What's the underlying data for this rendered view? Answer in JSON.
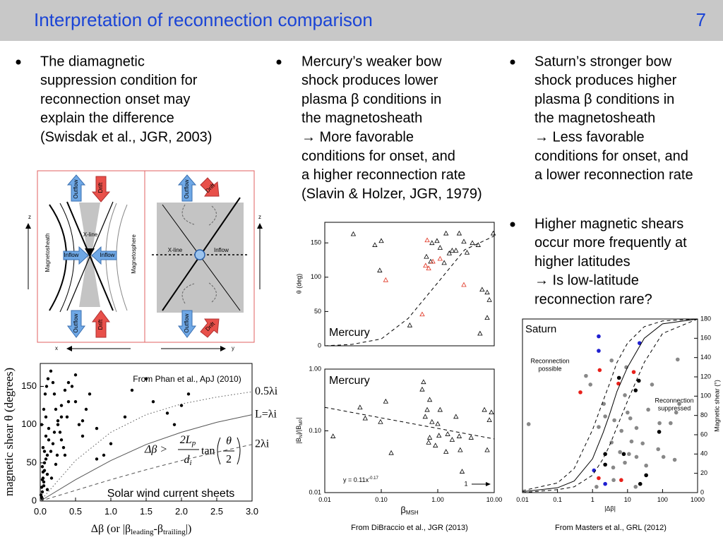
{
  "header": {
    "title": "Interpretation of reconnection comparison",
    "page_number": "7"
  },
  "bullets": [
    {
      "lines": [
        "The diamagnetic",
        "suppression condition for",
        "reconnection onset may",
        "explain the difference",
        "(Swisdak et al., JGR, 2003)"
      ]
    },
    {
      "lines": [
        "Mercury’s weaker bow",
        "shock produces lower",
        "plasma β conditions in",
        "the magnetosheath",
        "→ More favorable",
        "conditions for onset, and",
        "a higher reconnection rate",
        "(Slavin & Holzer, JGR, 1979)"
      ]
    },
    {
      "lines": [
        "Saturn’s stronger bow",
        "shock produces higher",
        "plasma β conditions in",
        "the magnetosheath",
        "→ Less favorable",
        "conditions for onset, and",
        "a lower reconnection rate"
      ]
    },
    {
      "lines": [
        "Higher magnetic shears",
        "occur more frequently at",
        "higher latitudes",
        "→ Is low-latitude",
        "reconnection rare?"
      ]
    }
  ],
  "diagram": {
    "left": {
      "outflow_top": "Outflow",
      "drift_top": "Drift",
      "outflow_bottom": "Outflow",
      "drift_bottom": "Drift",
      "inflow_left": "Inflow",
      "inflow_right": "Inflow",
      "x_line": "X-line",
      "magnetosheath": "Magnetosheath",
      "magnetosphere": "Magnetosphere"
    },
    "right": {
      "outflow_top": "Outflow",
      "drift_top": "Drift",
      "outflow_bottom": "Outflow",
      "drift_bottom": "Drift",
      "inflow": "Inflow",
      "x_line": "X-line"
    },
    "axes": {
      "z_left": "z",
      "z_right": "z",
      "x": "x",
      "y": "y"
    }
  },
  "chart_data": [
    {
      "type": "scatter",
      "y_label": "magnetic shear θ (degrees)",
      "x_label_parts": [
        "Δβ (or |β",
        "leading",
        "-β",
        "trailing",
        "|)"
      ],
      "source": "From Phan et al., ApJ (2010)",
      "annotation": "Solar wind current sheets",
      "formula": {
        "lhs": "Δβ >",
        "num": "2L",
        "num_sub": "p",
        "den": "d",
        "den_sub": "i",
        "func": "tan",
        "inner_num": "θ",
        "inner_den": "2"
      },
      "xlim": [
        0,
        3
      ],
      "ylim": [
        0,
        180
      ],
      "xticks": [
        {
          "value": 0,
          "label": "0.0"
        },
        0.5,
        {
          "value": 1,
          "label": "1.0"
        },
        1.5,
        {
          "value": 2,
          "label": "2.0"
        },
        2.5,
        {
          "value": 3,
          "label": "3.0"
        }
      ],
      "yticks": [
        0,
        50,
        100,
        150
      ],
      "series": [
        {
          "style": "points",
          "marker": "circle",
          "color": "#000000",
          "x": [
            0.02,
            0.03,
            0.05,
            0.04,
            0.06,
            0.08,
            0.1,
            0.12,
            0.02,
            0.05,
            0.07,
            0.09,
            0.11,
            0.15,
            0.18,
            0.2,
            0.22,
            0.25,
            0.28,
            0.3,
            0.33,
            0.35,
            0.38,
            0.4,
            0.45,
            0.5,
            0.55,
            0.6,
            0.65,
            0.7,
            0.8,
            0.9,
            1.0,
            1.2,
            1.3,
            1.5,
            1.6,
            1.8,
            1.9,
            2.0,
            2.1,
            0.03,
            0.06,
            0.1,
            0.15,
            0.2,
            0.25,
            0.3,
            0.35,
            0.4,
            0.04,
            0.08,
            0.12,
            0.18,
            0.24,
            0.3,
            0.05,
            0.1,
            0.16,
            0.22,
            0.01,
            0.02,
            0.03,
            0.04,
            0.06,
            0.08,
            0.5,
            0.6,
            0.8,
            0.03
          ],
          "values": [
            5,
            12,
            20,
            30,
            40,
            55,
            60,
            80,
            100,
            120,
            140,
            150,
            160,
            170,
            155,
            140,
            120,
            100,
            90,
            80,
            70,
            60,
            110,
            130,
            150,
            165,
            100,
            85,
            120,
            140,
            95,
            60,
            75,
            110,
            145,
            160,
            130,
            115,
            100,
            125,
            140,
            45,
            50,
            35,
            65,
            90,
            105,
            125,
            145,
            155,
            70,
            85,
            95,
            75,
            60,
            110,
            25,
            15,
            30,
            48,
            8,
            18,
            28,
            38,
            65,
            110,
            130,
            105,
            55,
            3
          ]
        },
        {
          "name": "0.5λi",
          "style": "dotted",
          "color": "#555555",
          "x": [
            0,
            0.5,
            1,
            1.5,
            2,
            2.5,
            3
          ],
          "values": [
            0,
            53,
            90,
            113,
            127,
            136,
            143
          ]
        },
        {
          "name": "L=λi",
          "style": "solid",
          "color": "#555555",
          "x": [
            0,
            0.5,
            1,
            1.5,
            2,
            2.5,
            3
          ],
          "values": [
            0,
            28,
            53,
            74,
            90,
            103,
            113
          ]
        },
        {
          "name": "2λi",
          "style": "dashed",
          "color": "#555555",
          "x": [
            0,
            0.5,
            1,
            1.5,
            2,
            2.5,
            3
          ],
          "values": [
            0,
            14,
            28,
            41,
            53,
            64,
            74
          ]
        }
      ]
    },
    {
      "type": "scatter",
      "y_label": "θ (deg)",
      "annotation": "Mercury",
      "xlog": true,
      "xlim": [
        0.01,
        10
      ],
      "ylim": [
        0,
        180
      ],
      "yticks": [
        0,
        50,
        100,
        150
      ],
      "series": [
        {
          "style": "points",
          "marker": "triangle",
          "color": "#000000",
          "x": [
            0.032,
            0.077,
            0.1,
            0.094,
            0.32,
            0.63,
            0.79,
            0.97,
            1.1,
            1.3,
            1.4,
            1.6,
            1.8,
            2.1,
            2.4,
            2.9,
            3.3,
            4.1,
            5.2,
            6.1,
            7.5,
            8.2,
            7.5,
            5.6,
            9.6,
            0.75
          ],
          "values": [
            163,
            147,
            153,
            110,
            30,
            130,
            150,
            153,
            143,
            121,
            164,
            135,
            139,
            139,
            164,
            152,
            136,
            150,
            147,
            82,
            78,
            67,
            41,
            18,
            164,
            123
          ]
        },
        {
          "style": "points",
          "marker": "triangle",
          "color": "#e0301e",
          "x": [
            0.12,
            0.53,
            0.61,
            0.65,
            0.69,
            0.82,
            1.1,
            2.9
          ],
          "values": [
            96,
            46,
            117,
            154,
            113,
            123,
            127,
            89
          ]
        },
        {
          "style": "dashed",
          "color": "#000000",
          "x": [
            0.01,
            0.03,
            0.1,
            0.3,
            1,
            3,
            10
          ],
          "values": [
            0,
            2,
            10,
            40,
            92,
            140,
            160
          ]
        }
      ]
    },
    {
      "type": "scatter",
      "y_label_parts": [
        "|B",
        "N",
        "|/|B",
        "MP",
        "|"
      ],
      "x_label_parts": [
        "β",
        "MSH"
      ],
      "annotation": "Mercury",
      "fit": {
        "text": "y = 0.11x",
        "exponent": "-0.17"
      },
      "arrow_label": "1",
      "caption": "From DiBraccio et al., JGR (2013)",
      "xlog": true,
      "ylog": true,
      "xlim": [
        0.01,
        10
      ],
      "ylim": [
        0.01,
        1
      ],
      "xticks": [
        0.01,
        {
          "value": 0.1,
          "label": "0.10"
        },
        {
          "value": 1,
          "label": "1.00"
        },
        {
          "value": 10,
          "label": "10.00"
        }
      ],
      "yticks": [
        0.01,
        {
          "value": 0.1,
          "label": "0.10"
        },
        {
          "value": 1,
          "label": "1.00"
        }
      ],
      "series": [
        {
          "style": "points",
          "marker": "triangle",
          "color": "#000000",
          "x": [
            0.014,
            0.042,
            0.052,
            0.097,
            0.12,
            0.15,
            0.53,
            0.6,
            0.65,
            0.69,
            0.72,
            0.79,
            0.91,
            1.0,
            1.05,
            1.1,
            1.4,
            1.5,
            1.8,
            2.1,
            2.4,
            2.7,
            3.9,
            6.7,
            7.5,
            8.2,
            8.9,
            0.56,
            0.72,
            2.5
          ],
          "values": [
            0.082,
            0.24,
            0.16,
            0.14,
            0.3,
            0.044,
            0.47,
            0.17,
            0.22,
            0.065,
            0.078,
            0.14,
            0.058,
            0.13,
            0.084,
            0.22,
            0.046,
            0.089,
            0.072,
            0.17,
            0.082,
            0.022,
            0.078,
            0.22,
            0.049,
            0.15,
            0.2,
            0.62,
            0.32,
            0.049
          ]
        },
        {
          "style": "dashed",
          "color": "#000000",
          "x": [
            0.01,
            10
          ],
          "values": [
            0.24,
            0.074
          ]
        }
      ]
    },
    {
      "type": "scatter",
      "y_label": "Magnetic shear (°)",
      "x_label": "|Δβ|",
      "annotation": "Saturn",
      "possible": [
        "Reconnection",
        "possible"
      ],
      "suppressed": [
        "Reconnection",
        "suppressed"
      ],
      "caption": "From Masters et al., GRL (2012)",
      "yaxis_side": "right",
      "xlog": true,
      "xlim": [
        0.01,
        1000
      ],
      "ylim": [
        0,
        180
      ],
      "xticks": [
        0.01,
        0.1,
        1,
        10,
        100,
        1000
      ],
      "yticks": [
        0,
        20,
        40,
        60,
        80,
        100,
        120,
        140,
        160,
        180
      ],
      "series": [
        {
          "style": "points",
          "marker": "circle",
          "color": "#888888",
          "x": [
            0.015,
            0.65,
            0.87,
            2.1,
            3.5,
            4.2,
            6.7,
            9.2,
            8.4,
            12,
            6.1,
            13,
            18,
            3.5,
            1.5,
            2.3,
            3.9,
            8.4,
            17,
            34,
            50,
            75,
            106,
            222,
            270,
            245,
            300,
            170,
            39,
            10,
            4.0,
            11,
            18,
            1.3,
            27,
            82
          ],
          "values": [
            71,
            121,
            112,
            92,
            137,
            75,
            64,
            130,
            101,
            77,
            42,
            53,
            67,
            52,
            68,
            79,
            26,
            31,
            6,
            28,
            112,
            45,
            37,
            34,
            138,
            83,
            92,
            72,
            86,
            83,
            13,
            40,
            37,
            6,
            51,
            72
          ]
        },
        {
          "style": "points",
          "marker": "circle",
          "color": "#1f1fd0",
          "x": [
            1.5,
            22,
            1.5,
            1.1,
            2.3
          ],
          "values": [
            162,
            155,
            147,
            23,
            9
          ]
        },
        {
          "style": "points",
          "marker": "circle",
          "color": "#e8201a",
          "x": [
            0.45,
            1.6,
            15,
            5.5,
            1.5,
            6.6
          ],
          "values": [
            104,
            127,
            125,
            113,
            15,
            13
          ]
        },
        {
          "style": "points",
          "marker": "circle",
          "color": "#000000",
          "x": [
            5.7,
            17,
            2.3,
            7.8,
            21,
            34,
            23,
            80,
            2.3
          ],
          "values": [
            119,
            106,
            40,
            40,
            116,
            18,
            9,
            63,
            29
          ]
        },
        {
          "style": "solid",
          "color": "#000000",
          "x": [
            0.01,
            0.1,
            0.3,
            1,
            2,
            3,
            5,
            10,
            30,
            100,
            1000
          ],
          "values": [
            1,
            5,
            12,
            35,
            62,
            80,
            105,
            130,
            160,
            175,
            180
          ]
        },
        {
          "style": "dashed",
          "color": "#000000",
          "x": [
            0.01,
            0.1,
            0.3,
            1,
            2,
            3,
            5,
            10,
            30,
            100,
            1000
          ],
          "values": [
            2,
            10,
            25,
            65,
            95,
            112,
            135,
            155,
            172,
            178,
            180
          ]
        },
        {
          "style": "dashed",
          "color": "#000000",
          "x": [
            0.01,
            0.1,
            0.3,
            1,
            2,
            3,
            5,
            10,
            30,
            100,
            1000
          ],
          "values": [
            0,
            3,
            6,
            18,
            35,
            48,
            68,
            95,
            135,
            165,
            180
          ]
        }
      ]
    }
  ]
}
